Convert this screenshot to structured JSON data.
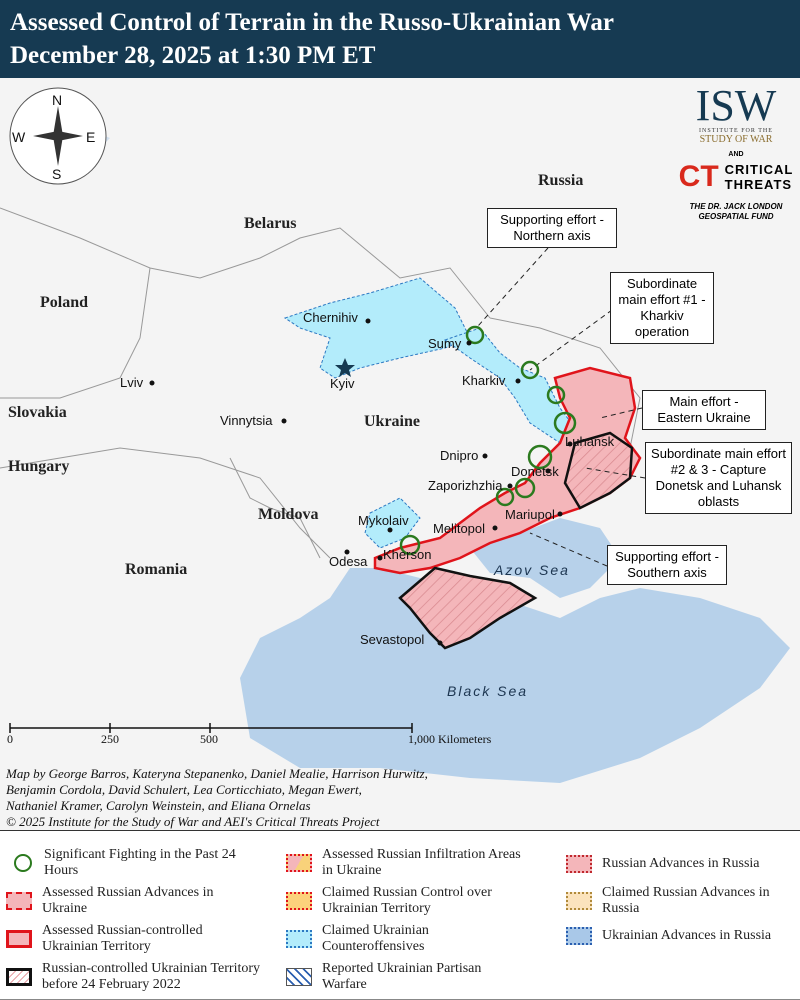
{
  "header": {
    "title_line1": "Assessed Control of Terrain in the Russo-Ukrainian War",
    "title_line2": "December 28, 2025 at 1:30 PM ET"
  },
  "logo": {
    "isw": "ISW",
    "isw_sub1": "INSTITUTE FOR THE",
    "isw_sub2": "STUDY OF WAR",
    "and": "AND",
    "ct": "CT",
    "ct_text1": "CRITICAL",
    "ct_text2": "THREATS",
    "fund1": "THE DR. JACK LONDON",
    "fund2": "GEOSPATIAL FUND"
  },
  "compass": {
    "n": "N",
    "s": "S",
    "e": "E",
    "w": "W"
  },
  "countries": {
    "russia": "Russia",
    "belarus": "Belarus",
    "poland": "Poland",
    "ukraine": "Ukraine",
    "slovakia": "Slovakia",
    "hungary": "Hungary",
    "moldova": "Moldova",
    "romania": "Romania"
  },
  "seas": {
    "azov": "Azov Sea",
    "black": "Black Sea"
  },
  "cities": [
    "Chernihiv",
    "Sumy",
    "Kyiv",
    "Kharkiv",
    "Lviv",
    "Vinnytsia",
    "Dnipro",
    "Luhansk",
    "Donetsk",
    "Zaporizhzhia",
    "Mariupol",
    "Mykolaiv",
    "Melitopol",
    "Kherson",
    "Odesa",
    "Sevastopol"
  ],
  "callouts": [
    "Supporting effort - Northern axis",
    "Subordinate main effort #1 - Kharkiv operation",
    "Main effort - Eastern Ukraine",
    "Subordinate main effort #2 & 3 - Capture Donetsk and Luhansk oblasts",
    "Supporting effort - Southern axis"
  ],
  "scale": {
    "t0": "0",
    "t1": "250",
    "t2": "500",
    "t3": "1,000 Kilometers"
  },
  "credits": [
    "Map by George Barros, Kateryna Stepanenko, Daniel Mealie, Harrison Hurwitz,",
    "Benjamin Cordola, David Schulert, Lea Corticchiato, Megan Ewert,",
    "Nathaniel Kramer, Carolyn Weinstein, and Eliana Ornelas",
    "© 2025 Institute for the Study of War and AEI's Critical Threats Project"
  ],
  "legend": [
    {
      "label": "Significant Fighting in the Past 24 Hours"
    },
    {
      "label": "Assessed Russian Advances in Ukraine"
    },
    {
      "label": "Assessed Russian-controlled Ukrainian Territory"
    },
    {
      "label": "Russian-controlled Ukrainian Territory before 24 February 2022"
    },
    {
      "label": "Assessed Russian Infiltration Areas in Ukraine"
    },
    {
      "label": "Claimed Russian Control over Ukrainian Territory"
    },
    {
      "label": "Claimed Ukrainian Counteroffensives"
    },
    {
      "label": "Reported Ukrainian Partisan Warfare"
    },
    {
      "label": "Russian Advances in Russia"
    },
    {
      "label": "Claimed Russian Advances in Russia"
    },
    {
      "label": "Ukrainian Advances in Russia"
    }
  ],
  "colors": {
    "header": "#163a52",
    "russian_control": "#f4b6ba",
    "front_line": "#e0141b",
    "ukrainian_counter": "#b3ecfb",
    "sea": "#b7d1ea",
    "fighting": "#2b7a1e"
  }
}
